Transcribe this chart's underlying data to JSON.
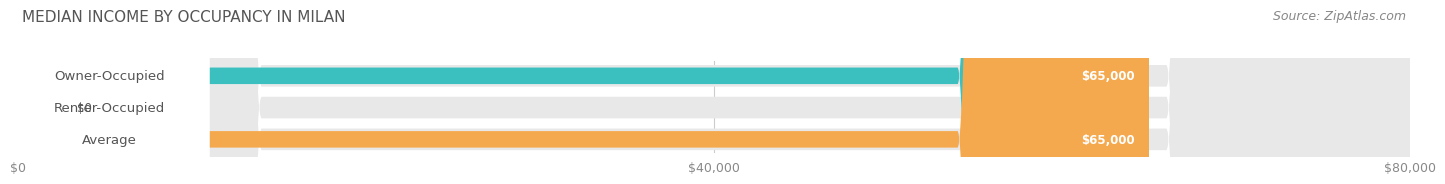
{
  "title": "MEDIAN INCOME BY OCCUPANCY IN MILAN",
  "source": "Source: ZipAtlas.com",
  "categories": [
    "Owner-Occupied",
    "Renter-Occupied",
    "Average"
  ],
  "values": [
    65000,
    0,
    65000
  ],
  "bar_colors": [
    "#3bbfbf",
    "#b89cc8",
    "#f5a94e"
  ],
  "bar_bg_color": "#e8e8e8",
  "label_color": "#555555",
  "value_labels": [
    "$65,000",
    "$0",
    "$65,000"
  ],
  "x_ticks": [
    0,
    40000,
    80000
  ],
  "x_tick_labels": [
    "$0",
    "$40,000",
    "$80,000"
  ],
  "xlim": [
    0,
    80000
  ],
  "title_fontsize": 11,
  "source_fontsize": 9,
  "label_fontsize": 9.5,
  "value_fontsize": 8.5,
  "background_color": "#ffffff"
}
